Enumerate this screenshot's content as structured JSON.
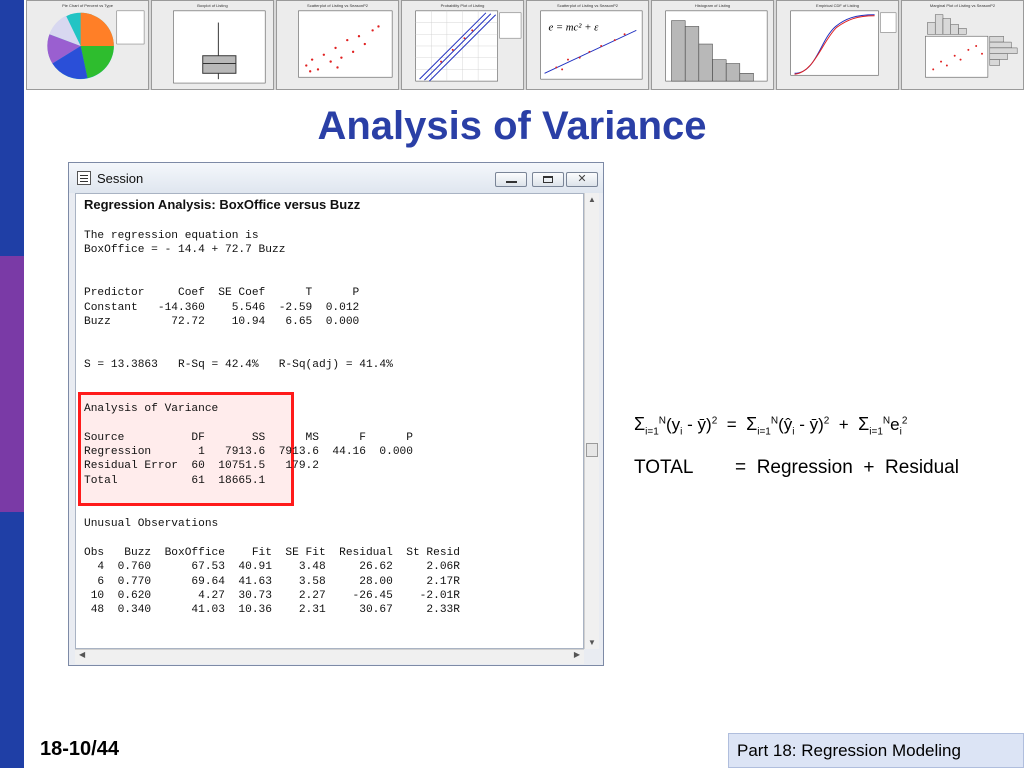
{
  "thumbnails": [
    {
      "title": "Pie Chart of Percent vs Type",
      "kind": "pie"
    },
    {
      "title": "Boxplot of Listing",
      "kind": "box"
    },
    {
      "title": "Scatterplot of Listing vs SeasonP2",
      "kind": "scatter"
    },
    {
      "title": "Probability Plot of Listing",
      "kind": "prob"
    },
    {
      "title": "Scatterplot of Listing vs SeasonP2",
      "kind": "formula",
      "formula": "e = mc² + ε"
    },
    {
      "title": "Histogram of Listing",
      "kind": "hist"
    },
    {
      "title": "Empirical CDF of Listing",
      "kind": "cdf"
    },
    {
      "title": "Marginal Plot of Listing vs SeasonP2",
      "kind": "marginal"
    }
  ],
  "slide_title": "Analysis of Variance",
  "session": {
    "title": "Session",
    "heading": "Regression Analysis: BoxOffice versus Buzz",
    "lines": [
      "",
      "The regression equation is",
      "BoxOffice = - 14.4 + 72.7 Buzz",
      "",
      "",
      "Predictor     Coef  SE Coef      T      P",
      "Constant   -14.360    5.546  -2.59  0.012",
      "Buzz         72.72    10.94   6.65  0.000",
      "",
      "",
      "S = 13.3863   R-Sq = 42.4%   R-Sq(adj) = 41.4%",
      "",
      "",
      "Analysis of Variance",
      "",
      "Source          DF       SS      MS      F      P",
      "Regression       1   7913.6  7913.6  44.16  0.000",
      "Residual Error  60  10751.5   179.2",
      "Total           61  18665.1",
      "",
      "",
      "Unusual Observations",
      "",
      "Obs   Buzz  BoxOffice    Fit  SE Fit  Residual  St Resid",
      "  4  0.760      67.53  40.91    3.48     26.62     2.06R",
      "  6  0.770      69.64  41.63    3.58     28.00     2.17R",
      " 10  0.620       4.27  30.73    2.27    -26.45    -2.01R",
      " 48  0.340      41.03  10.36    2.31     30.67     2.33R"
    ]
  },
  "formula": {
    "total_label": "TOTAL",
    "regression_label": "Regression",
    "residual_label": "Residual",
    "equals": "=",
    "plus": "+"
  },
  "footer": {
    "slide_number": "18-10/44",
    "part": "Part 18: Regression Modeling"
  },
  "colors": {
    "band_blue": "#1f3fa6",
    "band_purple": "#7a3aa6",
    "title_blue": "#2a3fa6",
    "highlight_red": "#ff1a1a"
  }
}
